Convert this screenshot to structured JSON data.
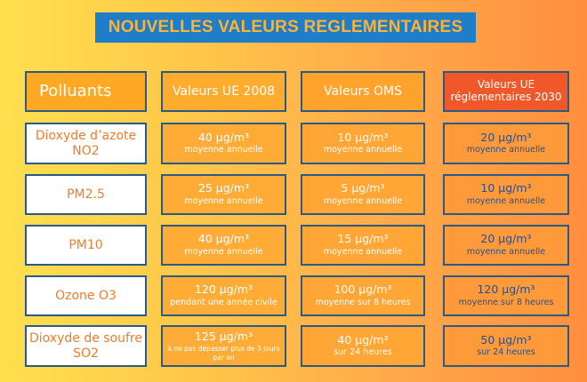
{
  "title": "NOUVELLES VALEURS REGLEMENTAIRES",
  "headers": {
    "polluants": "Polluants",
    "ue2008": "Valeurs UE 2008",
    "oms": "Valeurs OMS",
    "ue2030": "Valeurs UE réglementaires 2030"
  },
  "rows": [
    {
      "polluant": "Dioxyde d’azote NO2",
      "ue2008": {
        "value": "40 µg/m³",
        "note": "moyenne annuelle"
      },
      "oms": {
        "value": "10 µg/m³",
        "note": "moyenne annuelle"
      },
      "ue2030": {
        "value": "20 µg/m³",
        "note": "moyenne annuelle"
      }
    },
    {
      "polluant": "PM2.5",
      "ue2008": {
        "value": "25 µg/m³",
        "note": "moyenne annuelle"
      },
      "oms": {
        "value": "5 µg/m³",
        "note": "moyenne annuelle"
      },
      "ue2030": {
        "value": "10 µg/m³",
        "note": "moyenne annuelle"
      }
    },
    {
      "polluant": "PM10",
      "ue2008": {
        "value": "40 µg/m³",
        "note": "moyenne annuelle"
      },
      "oms": {
        "value": "15 µg/m³",
        "note": "moyenne annuelle"
      },
      "ue2030": {
        "value": "20 µg/m³",
        "note": "moyenne annuelle"
      }
    },
    {
      "polluant": "Ozone O3",
      "ue2008": {
        "value": "120 µg/m³",
        "note": "pendant une année civile"
      },
      "oms": {
        "value": "100 µg/m³",
        "note": "moyenne sur 8 heures"
      },
      "ue2030": {
        "value": "120 µg/m³",
        "note": "moyenne sur 8 heures"
      }
    },
    {
      "polluant": "Dioxyde de soufre SO2",
      "ue2008": {
        "value": "125 µg/m³",
        "note": "à ne pas dépasser plus de 3 jours par an"
      },
      "oms": {
        "value": "40 µg/m³",
        "note": "sur 24 heures"
      },
      "ue2030": {
        "value": "50 µg/m³",
        "note": "sur 24 heures"
      }
    }
  ],
  "colors": {
    "title_bg": "#1e7ec9",
    "title_text": "#ffb233",
    "border": "#2a5a86",
    "pollutant_text": "#f07c2c",
    "ue2030_header": "#f0582a",
    "ue2030_text": "#2b4f86"
  }
}
